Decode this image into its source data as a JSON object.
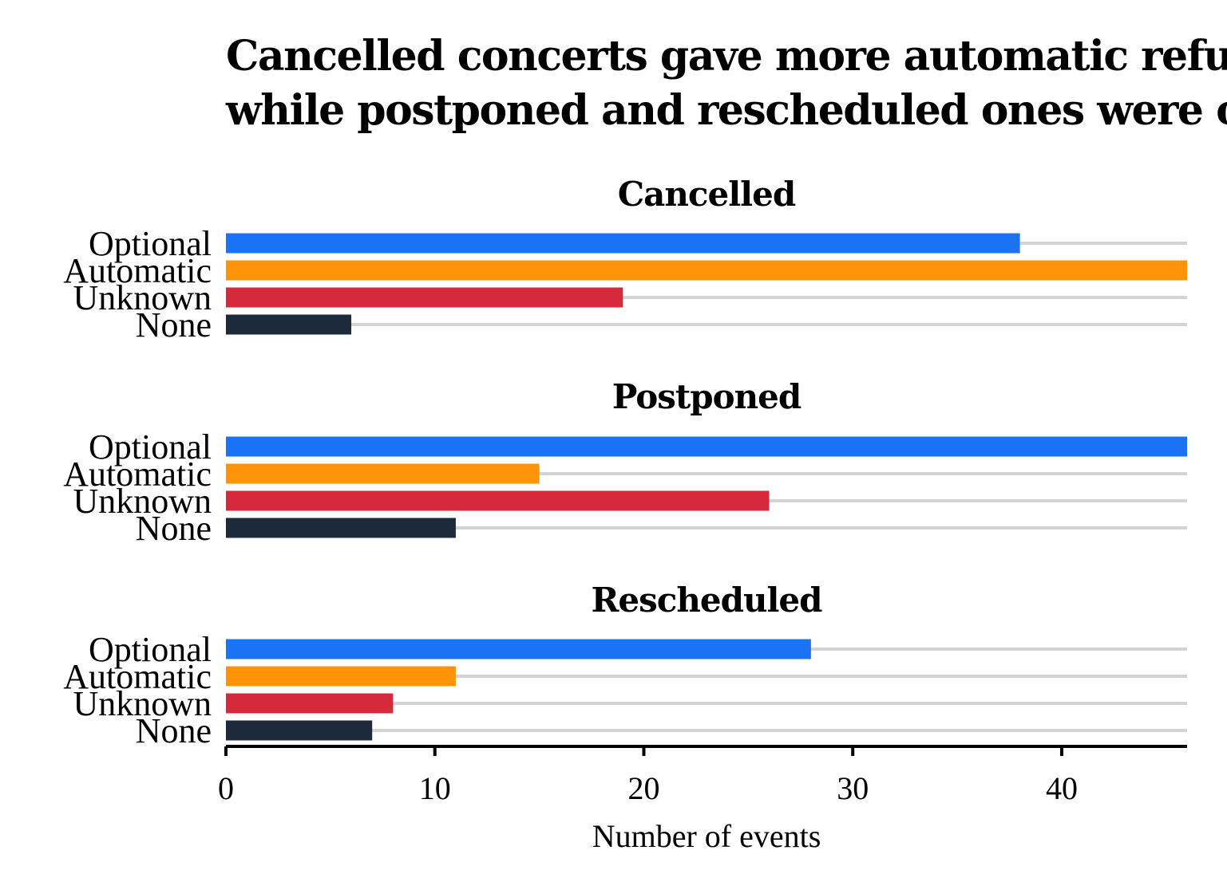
{
  "chart_data": {
    "type": "bar",
    "orientation": "horizontal",
    "title_lines": [
      "Cancelled concerts gave more automatic refunds,",
      "while postponed and rescheduled ones were optional"
    ],
    "xlabel": "Number of events",
    "xlim": [
      0,
      46
    ],
    "xticks": [
      0,
      10,
      20,
      30,
      40
    ],
    "categories": [
      "Optional",
      "Automatic",
      "Unknown",
      "None"
    ],
    "colors": {
      "Optional": "#1a73f5",
      "Automatic": "#ff9408",
      "Unknown": "#d42a3c",
      "None": "#1c2a3c"
    },
    "grid": true,
    "facets": [
      {
        "name": "Cancelled",
        "values": [
          38,
          46,
          19,
          6
        ]
      },
      {
        "name": "Postponed",
        "values": [
          46,
          15,
          26,
          11
        ]
      },
      {
        "name": "Rescheduled",
        "values": [
          28,
          11,
          8,
          7
        ]
      }
    ]
  }
}
